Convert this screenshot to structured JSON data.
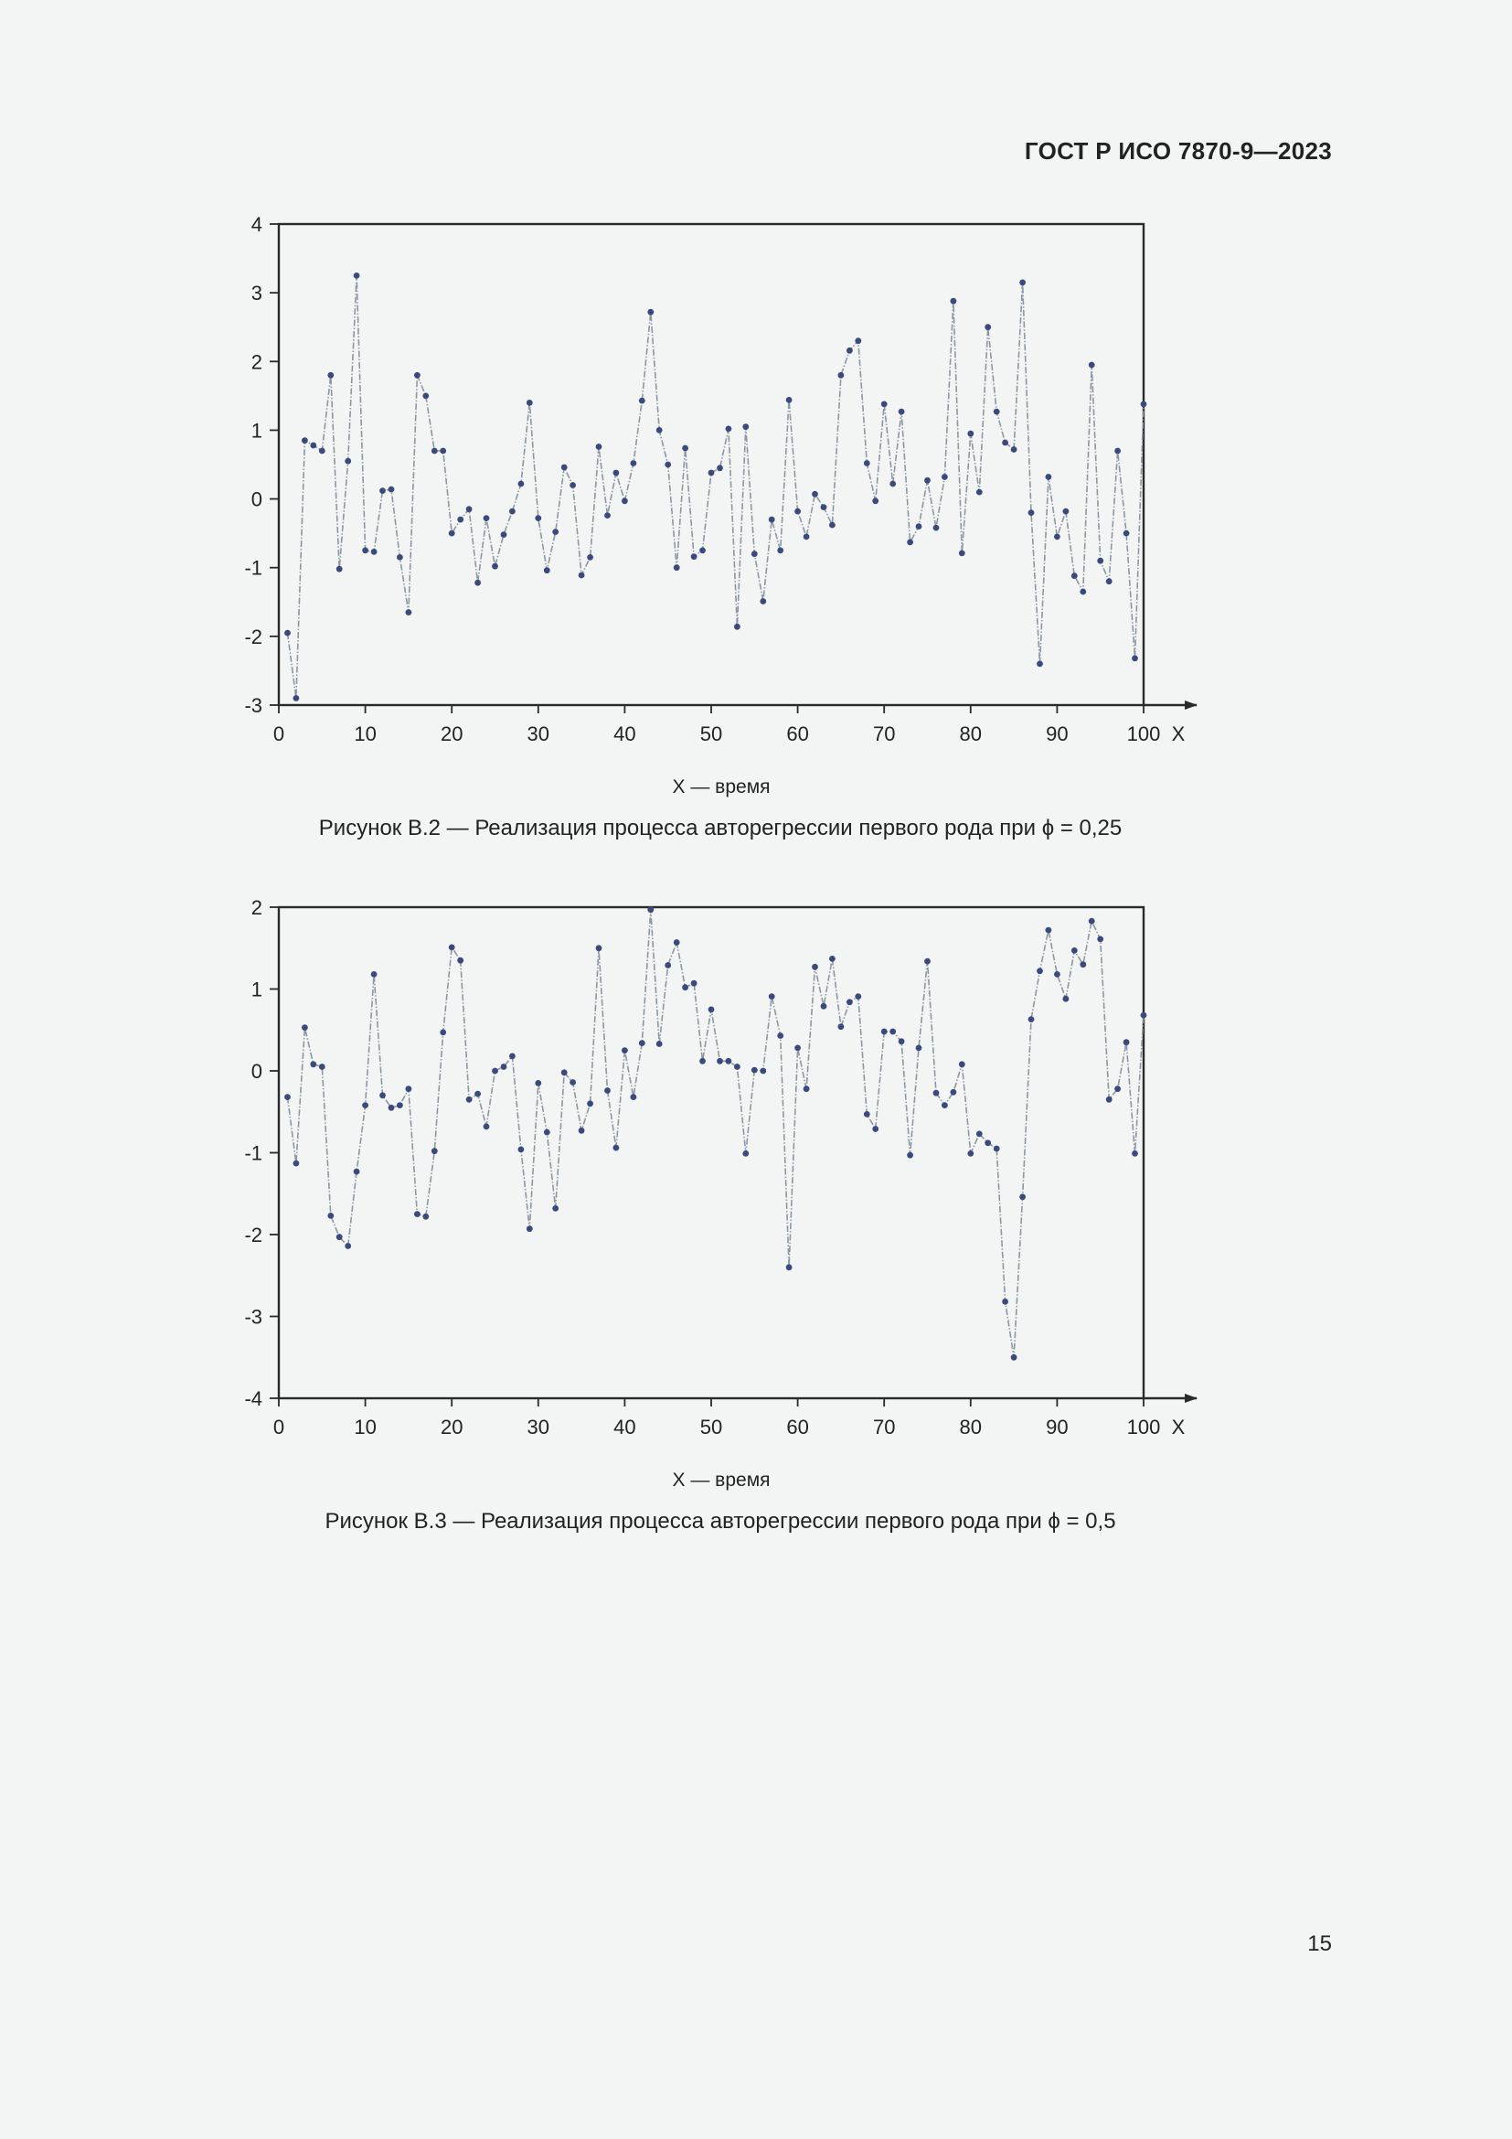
{
  "header": {
    "doc_code": "ГОСТ Р ИСО 7870-9—2023"
  },
  "footer": {
    "page_number": "15"
  },
  "chart_data": [
    {
      "type": "line",
      "title": "",
      "xlabel": "X — время",
      "x_axis_letter": "X",
      "ylabel": "",
      "caption": "Рисунок В.2 — Реализация процесса авторегрессии первого рода при ϕ = 0,25",
      "xlim": [
        0,
        100
      ],
      "ylim": [
        -3,
        4
      ],
      "xticks": [
        0,
        10,
        20,
        30,
        40,
        50,
        60,
        70,
        80,
        90,
        100
      ],
      "yticks": [
        4,
        3,
        2,
        1,
        0,
        -1,
        -2,
        -3
      ],
      "grid": false,
      "x": [
        1,
        2,
        3,
        4,
        5,
        6,
        7,
        8,
        9,
        10,
        11,
        12,
        13,
        14,
        15,
        16,
        17,
        18,
        19,
        20,
        21,
        22,
        23,
        24,
        25,
        26,
        27,
        28,
        29,
        30,
        31,
        32,
        33,
        34,
        35,
        36,
        37,
        38,
        39,
        40,
        41,
        42,
        43,
        44,
        45,
        46,
        47,
        48,
        49,
        50,
        51,
        52,
        53,
        54,
        55,
        56,
        57,
        58,
        59,
        60,
        61,
        62,
        63,
        64,
        65,
        66,
        67,
        68,
        69,
        70,
        71,
        72,
        73,
        74,
        75,
        76,
        77,
        78,
        79,
        80,
        81,
        82,
        83,
        84,
        85,
        86,
        87,
        88,
        89,
        90,
        91,
        92,
        93,
        94,
        95,
        96,
        97,
        98,
        99,
        100
      ],
      "series": [
        {
          "name": "ϕ = 0,25",
          "values": [
            -1.95,
            -2.9,
            0.85,
            0.78,
            0.7,
            1.8,
            -1.02,
            0.55,
            3.25,
            -0.75,
            -0.77,
            0.12,
            0.14,
            -0.85,
            -1.65,
            1.8,
            1.5,
            0.7,
            0.7,
            -0.5,
            -0.3,
            -0.15,
            -1.22,
            -0.28,
            -0.98,
            -0.52,
            -0.18,
            0.22,
            1.4,
            -0.28,
            -1.04,
            -0.48,
            0.46,
            0.2,
            -1.11,
            -0.85,
            0.76,
            -0.24,
            0.38,
            -0.03,
            0.52,
            1.43,
            2.72,
            1.0,
            0.5,
            -1.0,
            0.74,
            -0.84,
            -0.75,
            0.38,
            0.45,
            1.02,
            -1.86,
            1.05,
            -0.8,
            -1.49,
            -0.3,
            -0.75,
            1.44,
            -0.18,
            -0.55,
            0.07,
            -0.12,
            -0.38,
            1.8,
            2.16,
            2.3,
            0.52,
            -0.03,
            1.38,
            0.22,
            1.27,
            -0.63,
            -0.4,
            0.27,
            -0.42,
            0.32,
            2.88,
            -0.79,
            0.95,
            0.1,
            2.5,
            1.27,
            0.82,
            0.72,
            3.15,
            -0.2,
            -2.4,
            0.32,
            -0.55,
            -0.18,
            -1.12,
            -1.35,
            1.95,
            -0.9,
            -1.2,
            0.7,
            -0.5,
            -2.32,
            1.38
          ]
        }
      ]
    },
    {
      "type": "line",
      "title": "",
      "xlabel": "X — время",
      "x_axis_letter": "X",
      "ylabel": "",
      "caption": "Рисунок В.3 — Реализация процесса авторегрессии первого рода при ϕ = 0,5",
      "xlim": [
        0,
        100
      ],
      "ylim": [
        -4,
        2
      ],
      "xticks": [
        0,
        10,
        20,
        30,
        40,
        50,
        60,
        70,
        80,
        90,
        100
      ],
      "yticks": [
        2,
        1,
        0,
        -1,
        -2,
        -3,
        -4
      ],
      "grid": false,
      "x": [
        1,
        2,
        3,
        4,
        5,
        6,
        7,
        8,
        9,
        10,
        11,
        12,
        13,
        14,
        15,
        16,
        17,
        18,
        19,
        20,
        21,
        22,
        23,
        24,
        25,
        26,
        27,
        28,
        29,
        30,
        31,
        32,
        33,
        34,
        35,
        36,
        37,
        38,
        39,
        40,
        41,
        42,
        43,
        44,
        45,
        46,
        47,
        48,
        49,
        50,
        51,
        52,
        53,
        54,
        55,
        56,
        57,
        58,
        59,
        60,
        61,
        62,
        63,
        64,
        65,
        66,
        67,
        68,
        69,
        70,
        71,
        72,
        73,
        74,
        75,
        76,
        77,
        78,
        79,
        80,
        81,
        82,
        83,
        84,
        85,
        86,
        87,
        88,
        89,
        90,
        91,
        92,
        93,
        94,
        95,
        96,
        97,
        98,
        99,
        100
      ],
      "series": [
        {
          "name": "ϕ = 0,5",
          "values": [
            -0.32,
            -1.13,
            0.53,
            0.08,
            0.05,
            -1.77,
            -2.03,
            -2.14,
            -1.23,
            -0.42,
            1.18,
            -0.3,
            -0.45,
            -0.42,
            -0.22,
            -1.75,
            -1.78,
            -0.98,
            0.47,
            1.51,
            1.35,
            -0.35,
            -0.28,
            -0.68,
            0.0,
            0.05,
            0.18,
            -0.96,
            -1.93,
            -0.15,
            -0.75,
            -1.68,
            -0.02,
            -0.14,
            -0.73,
            -0.4,
            1.5,
            -0.24,
            -0.94,
            0.25,
            -0.32,
            0.34,
            1.97,
            0.33,
            1.29,
            1.57,
            1.02,
            1.07,
            0.12,
            0.75,
            0.12,
            0.12,
            0.05,
            -1.01,
            0.01,
            0.0,
            0.91,
            0.43,
            -2.4,
            0.28,
            -0.22,
            1.27,
            0.79,
            1.37,
            0.54,
            0.84,
            0.91,
            -0.53,
            -0.71,
            0.48,
            0.48,
            0.36,
            -1.03,
            0.28,
            1.34,
            -0.27,
            -0.42,
            -0.26,
            0.08,
            -1.01,
            -0.77,
            -0.88,
            -0.95,
            -2.82,
            -3.5,
            -1.54,
            0.63,
            1.22,
            1.72,
            1.18,
            0.88,
            1.47,
            1.3,
            1.83,
            1.61,
            -0.35,
            -0.22,
            0.35,
            -1.01,
            0.68
          ]
        }
      ]
    }
  ]
}
